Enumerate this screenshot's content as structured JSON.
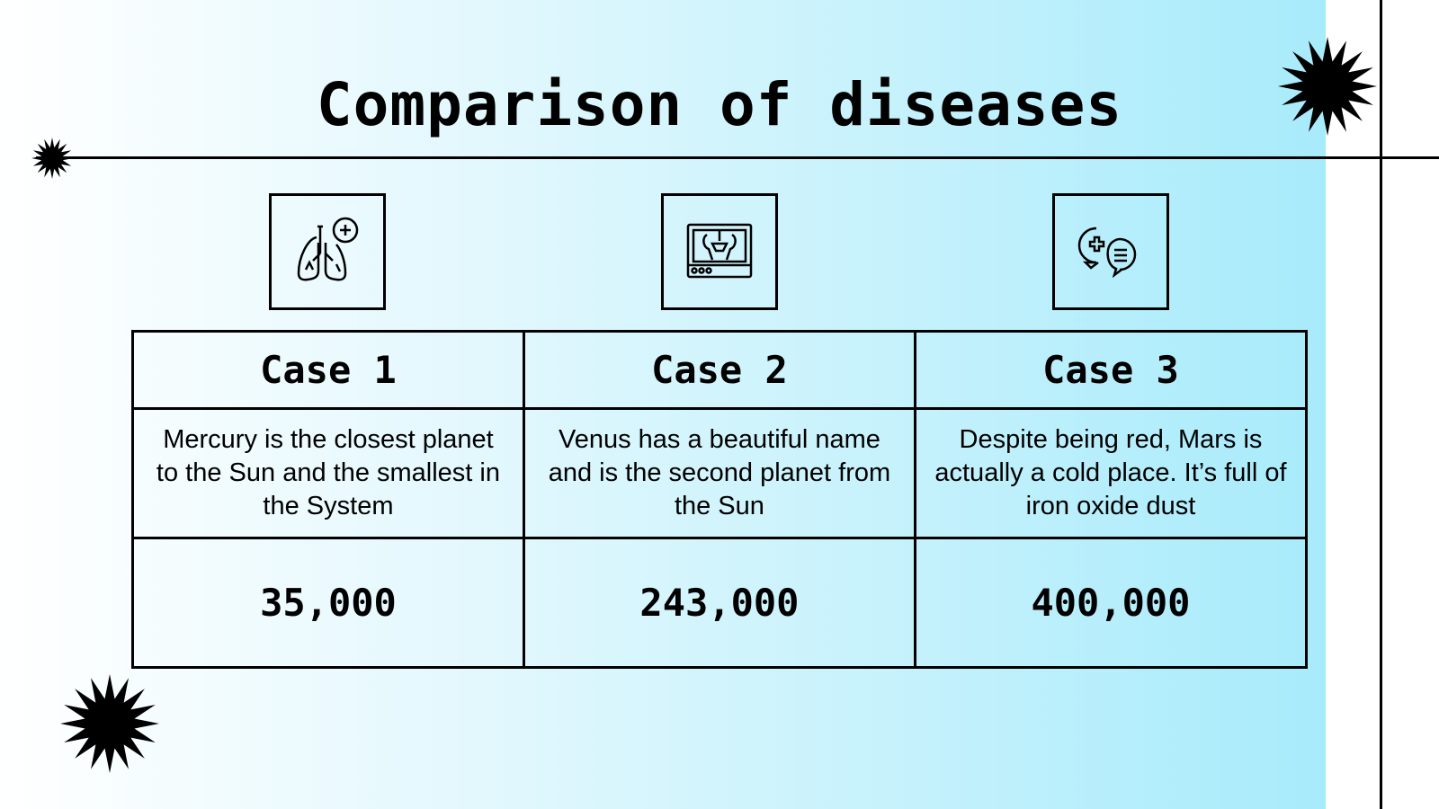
{
  "slide": {
    "title": "Comparison of diseases",
    "colors": {
      "gradient_start": "#ffffff",
      "gradient_end": "#a8ebfb",
      "ink": "#000000"
    },
    "icons": [
      "lungs-medical-icon",
      "xray-pelvis-monitor-icon",
      "medical-chat-icon"
    ],
    "table": {
      "headers": [
        "Case 1",
        "Case 2",
        "Case 3"
      ],
      "descriptions": [
        "Mercury is the closest planet to the Sun and the smallest in the System",
        "Venus has a beautiful name and is the second planet from the Sun",
        "Despite being red, Mars is actually a cold place. It’s full of iron oxide dust"
      ],
      "values": [
        "35,000",
        "243,000",
        "400,000"
      ]
    }
  }
}
